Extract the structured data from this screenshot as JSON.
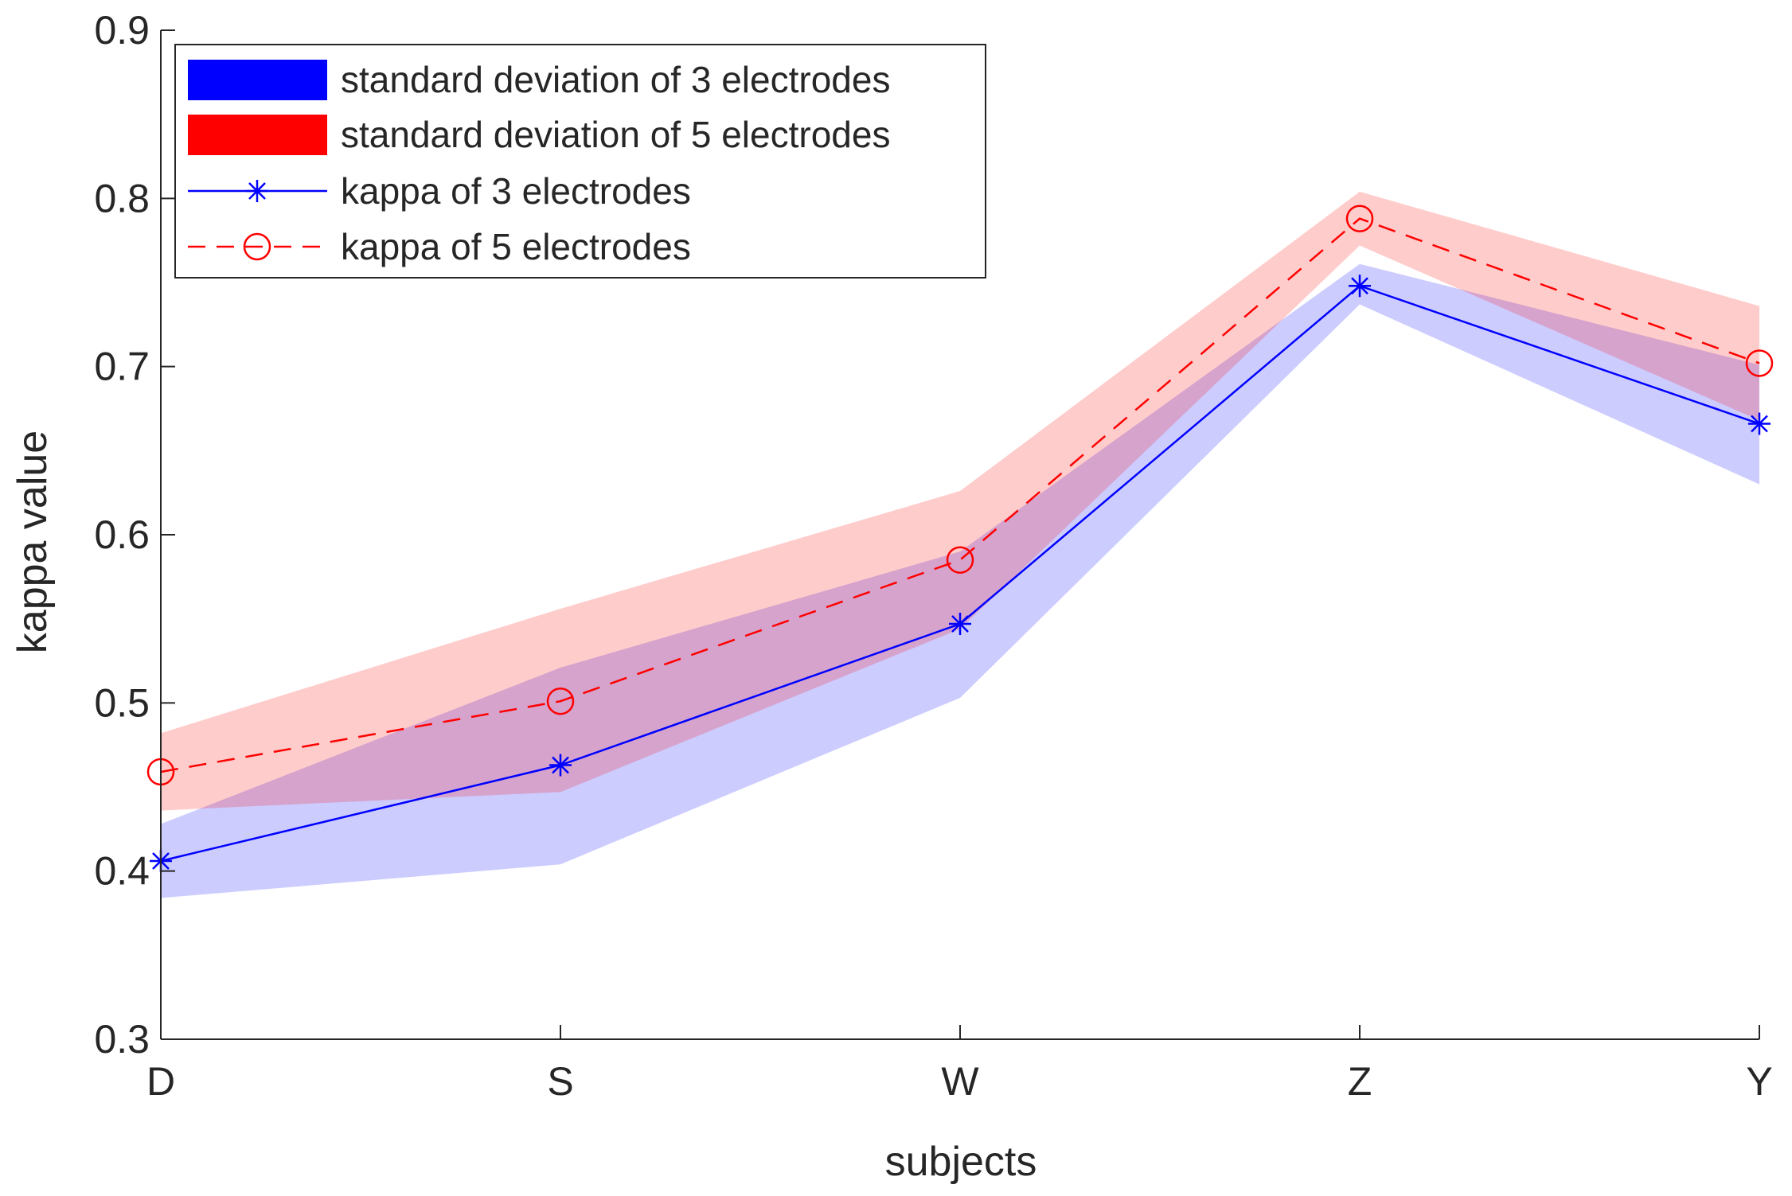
{
  "chart_data": {
    "type": "line",
    "title": "",
    "xlabel": "subjects",
    "ylabel": "kappa value",
    "categories": [
      "D",
      "S",
      "W",
      "Z",
      "Y"
    ],
    "ylim": [
      0.3,
      0.9
    ],
    "yticks": [
      "0.3",
      "0.4",
      "0.5",
      "0.6",
      "0.7",
      "0.8",
      "0.9"
    ],
    "grid": false,
    "legend_position": "top-left",
    "bands": [
      {
        "name": "standard deviation of 3 electrodes",
        "color": "#0000ff",
        "opacity": 0.2,
        "upper": [
          0.428,
          0.521,
          0.59,
          0.761,
          0.701
        ],
        "lower": [
          0.384,
          0.404,
          0.503,
          0.737,
          0.63
        ]
      },
      {
        "name": "standard deviation of 5 electrodes",
        "color": "#ff0000",
        "opacity": 0.2,
        "upper": [
          0.482,
          0.556,
          0.626,
          0.804,
          0.736
        ],
        "lower": [
          0.436,
          0.447,
          0.544,
          0.772,
          0.668
        ]
      }
    ],
    "series": [
      {
        "name": "kappa of 3 electrodes",
        "color": "#0000ff",
        "line_style": "solid",
        "marker": "asterisk",
        "values": [
          0.406,
          0.463,
          0.547,
          0.748,
          0.666
        ]
      },
      {
        "name": "kappa of 5 electrodes",
        "color": "#ff0000",
        "line_style": "dashed",
        "marker": "circle",
        "values": [
          0.459,
          0.501,
          0.585,
          0.788,
          0.702
        ]
      }
    ]
  }
}
